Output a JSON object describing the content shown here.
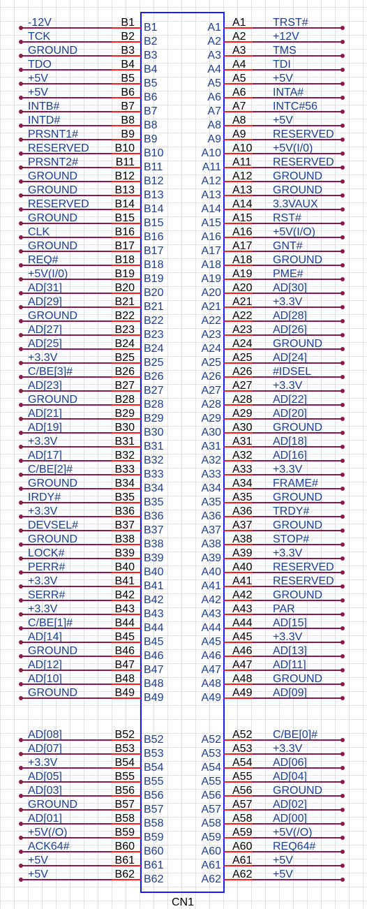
{
  "connector": {
    "ref": "CN1",
    "pins": [
      {
        "b_net": "-12V",
        "b_pin": "B1",
        "a_pin": "A1",
        "a_net": "TRST#"
      },
      {
        "b_net": "TCK",
        "b_pin": "B2",
        "a_pin": "A2",
        "a_net": "+12V"
      },
      {
        "b_net": "GROUND",
        "b_pin": "B3",
        "a_pin": "A3",
        "a_net": "TMS"
      },
      {
        "b_net": "TDO",
        "b_pin": "B4",
        "a_pin": "A4",
        "a_net": "TDI"
      },
      {
        "b_net": "+5V",
        "b_pin": "B5",
        "a_pin": "A5",
        "a_net": "+5V"
      },
      {
        "b_net": "+5V",
        "b_pin": "B6",
        "a_pin": "A6",
        "a_net": "INTA#"
      },
      {
        "b_net": "INTB#",
        "b_pin": "B7",
        "a_pin": "A7",
        "a_net": "INTC#56"
      },
      {
        "b_net": "INTD#",
        "b_pin": "B8",
        "a_pin": "A8",
        "a_net": "+5V"
      },
      {
        "b_net": "PRSNT1#",
        "b_pin": "B9",
        "a_pin": "A9",
        "a_net": "RESERVED"
      },
      {
        "b_net": "RESERVED",
        "b_pin": "B10",
        "a_pin": "A10",
        "a_net": "+5V(I/0)"
      },
      {
        "b_net": "PRSNT2#",
        "b_pin": "B11",
        "a_pin": "A11",
        "a_net": "RESERVED"
      },
      {
        "b_net": "GROUND",
        "b_pin": "B12",
        "a_pin": "A12",
        "a_net": "GROUND"
      },
      {
        "b_net": "GROUND",
        "b_pin": "B13",
        "a_pin": "A13",
        "a_net": "GROUND"
      },
      {
        "b_net": "RESERVED",
        "b_pin": "B14",
        "a_pin": "A14",
        "a_net": "3.3VAUX"
      },
      {
        "b_net": "GROUND",
        "b_pin": "B15",
        "a_pin": "A15",
        "a_net": "RST#"
      },
      {
        "b_net": "CLK",
        "b_pin": "B16",
        "a_pin": "A16",
        "a_net": "+5V(I/O)"
      },
      {
        "b_net": "GROUND",
        "b_pin": "B17",
        "a_pin": "A17",
        "a_net": "GNT#"
      },
      {
        "b_net": "REQ#",
        "b_pin": "B18",
        "a_pin": "A18",
        "a_net": "GROUND"
      },
      {
        "b_net": "+5V(I/0)",
        "b_pin": "B19",
        "a_pin": "A19",
        "a_net": "PME#"
      },
      {
        "b_net": "AD[31]",
        "b_pin": "B20",
        "a_pin": "A20",
        "a_net": "AD[30]"
      },
      {
        "b_net": "AD[29]",
        "b_pin": "B21",
        "a_pin": "A21",
        "a_net": "+3.3V"
      },
      {
        "b_net": "GROUND",
        "b_pin": "B22",
        "a_pin": "A22",
        "a_net": "AD[28]"
      },
      {
        "b_net": "AD[27]",
        "b_pin": "B23",
        "a_pin": "A23",
        "a_net": "AD[26]"
      },
      {
        "b_net": "AD[25]",
        "b_pin": "B24",
        "a_pin": "A24",
        "a_net": "GROUND"
      },
      {
        "b_net": "+3.3V",
        "b_pin": "B25",
        "a_pin": "A25",
        "a_net": "AD[24]"
      },
      {
        "b_net": "C/BE[3]#",
        "b_pin": "B26",
        "a_pin": "A26",
        "a_net": "#IDSEL"
      },
      {
        "b_net": "AD[23]",
        "b_pin": "B27",
        "a_pin": "A27",
        "a_net": "+3.3V"
      },
      {
        "b_net": "GROUND",
        "b_pin": "B28",
        "a_pin": "A28",
        "a_net": "AD[22]"
      },
      {
        "b_net": "AD[21]",
        "b_pin": "B29",
        "a_pin": "A29",
        "a_net": "AD[20]"
      },
      {
        "b_net": "AD[19]",
        "b_pin": "B30",
        "a_pin": "A30",
        "a_net": "GROUND"
      },
      {
        "b_net": "+3.3V",
        "b_pin": "B31",
        "a_pin": "A31",
        "a_net": "AD[18]"
      },
      {
        "b_net": "AD[17]",
        "b_pin": "B32",
        "a_pin": "A32",
        "a_net": "AD[16]"
      },
      {
        "b_net": "C/BE[2]#",
        "b_pin": "B33",
        "a_pin": "A33",
        "a_net": "+3.3V"
      },
      {
        "b_net": "GROUND",
        "b_pin": "B34",
        "a_pin": "A34",
        "a_net": "FRAME#"
      },
      {
        "b_net": "IRDY#",
        "b_pin": "B35",
        "a_pin": "A35",
        "a_net": "GROUND"
      },
      {
        "b_net": "+3.3V",
        "b_pin": "B36",
        "a_pin": "A36",
        "a_net": "TRDY#"
      },
      {
        "b_net": "DEVSEL#",
        "b_pin": "B37",
        "a_pin": "A37",
        "a_net": "GROUND"
      },
      {
        "b_net": "GROUND",
        "b_pin": "B38",
        "a_pin": "A38",
        "a_net": "STOP#"
      },
      {
        "b_net": "LOCK#",
        "b_pin": "B39",
        "a_pin": "A39",
        "a_net": "+3.3V"
      },
      {
        "b_net": "PERR#",
        "b_pin": "B40",
        "a_pin": "A40",
        "a_net": "RESERVED"
      },
      {
        "b_net": "+3.3V",
        "b_pin": "B41",
        "a_pin": "A41",
        "a_net": "RESERVED"
      },
      {
        "b_net": "SERR#",
        "b_pin": "B42",
        "a_pin": "A42",
        "a_net": "GROUND"
      },
      {
        "b_net": "+3.3V",
        "b_pin": "B43",
        "a_pin": "A43",
        "a_net": "PAR"
      },
      {
        "b_net": "C/BE[1]#",
        "b_pin": "B44",
        "a_pin": "A44",
        "a_net": "AD[15]"
      },
      {
        "b_net": "AD[14]",
        "b_pin": "B45",
        "a_pin": "A45",
        "a_net": "+3.3V"
      },
      {
        "b_net": "GROUND",
        "b_pin": "B46",
        "a_pin": "A46",
        "a_net": "AD[13]"
      },
      {
        "b_net": "AD[12]",
        "b_pin": "B47",
        "a_pin": "A47",
        "a_net": "AD[11]"
      },
      {
        "b_net": "AD[10]",
        "b_pin": "B48",
        "a_pin": "A48",
        "a_net": "GROUND"
      },
      {
        "b_net": "GROUND",
        "b_pin": "B49",
        "a_pin": "A49",
        "a_net": "AD[09]"
      },
      {
        "b_net": "AD[08]",
        "b_pin": "B52",
        "a_pin": "A52",
        "a_net": "C/BE[0]#"
      },
      {
        "b_net": "AD[07]",
        "b_pin": "B53",
        "a_pin": "A53",
        "a_net": "+3.3V"
      },
      {
        "b_net": "+3.3V",
        "b_pin": "B54",
        "a_pin": "A54",
        "a_net": "AD[06]"
      },
      {
        "b_net": "AD[05]",
        "b_pin": "B55",
        "a_pin": "A55",
        "a_net": "AD[04]"
      },
      {
        "b_net": "AD[03]",
        "b_pin": "B56",
        "a_pin": "A56",
        "a_net": "GROUND"
      },
      {
        "b_net": "GROUND",
        "b_pin": "B57",
        "a_pin": "A57",
        "a_net": "AD[02]"
      },
      {
        "b_net": "AD[01]",
        "b_pin": "B58",
        "a_pin": "A58",
        "a_net": "AD[00]"
      },
      {
        "b_net": "+5V(/O)",
        "b_pin": "B59",
        "a_pin": "A59",
        "a_net": "+5V(/O)"
      },
      {
        "b_net": "ACK64#",
        "b_pin": "B60",
        "a_pin": "A60",
        "a_net": "REQ64#"
      },
      {
        "b_net": "+5V",
        "b_pin": "B61",
        "a_pin": "A61",
        "a_net": "+5V"
      },
      {
        "b_net": "+5V",
        "b_pin": "B62",
        "a_pin": "A62",
        "a_net": "+5V"
      }
    ]
  }
}
